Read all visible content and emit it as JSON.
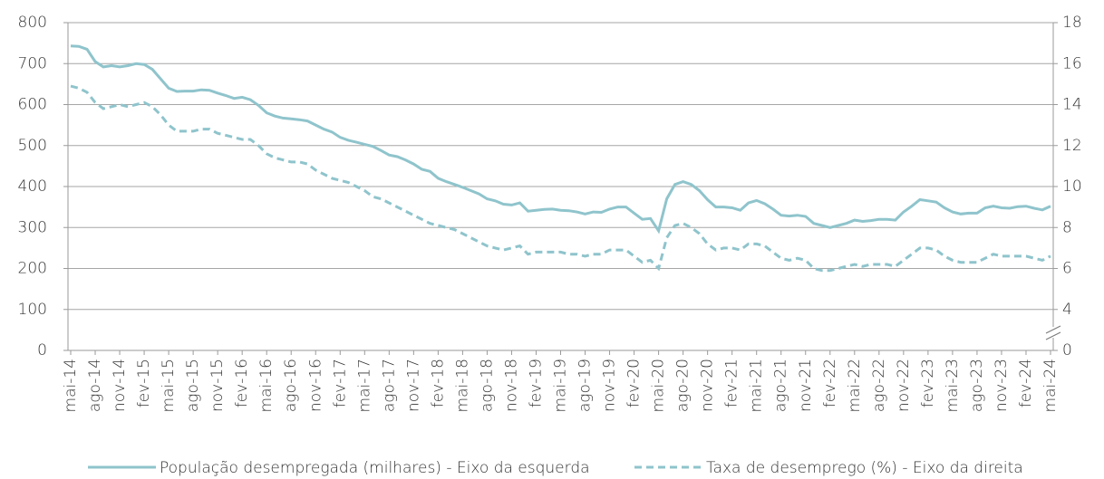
{
  "chart_data": {
    "type": "line",
    "categories": [
      "mai-14",
      null,
      null,
      "ago-14",
      null,
      null,
      "nov-14",
      null,
      null,
      "fev-15",
      null,
      null,
      "mai-15",
      null,
      null,
      "ago-15",
      null,
      null,
      "nov-15",
      null,
      null,
      "fev-16",
      null,
      null,
      "mai-16",
      null,
      null,
      "ago-16",
      null,
      null,
      "nov-16",
      null,
      null,
      "fev-17",
      null,
      null,
      "mai-17",
      null,
      null,
      "ago-17",
      null,
      null,
      "nov-17",
      null,
      null,
      "fev-18",
      null,
      null,
      "mai-18",
      null,
      null,
      "ago-18",
      null,
      null,
      "nov-18",
      null,
      null,
      "fev-19",
      null,
      null,
      "mai-19",
      null,
      null,
      "ago-19",
      null,
      null,
      "nov-19",
      null,
      null,
      "fev-20",
      null,
      null,
      "mai-20",
      null,
      null,
      "ago-20",
      null,
      null,
      "nov-20",
      null,
      null,
      "fev-21",
      null,
      null,
      "mai-21",
      null,
      null,
      "ago-21",
      null,
      null,
      "nov-21",
      null,
      null,
      "fev-22",
      null,
      null,
      "mai-22",
      null,
      null,
      "ago-22",
      null,
      null,
      "nov-22",
      null,
      null,
      "fev-23",
      null,
      null,
      "mai-23",
      null,
      null,
      "ago-23",
      null,
      null,
      "nov-23",
      null,
      null,
      "fev-24",
      null,
      null,
      "mai-24"
    ],
    "series": [
      {
        "name": "População desempregada (milhares) - Eixo da esquerda",
        "color": "#8fc4cc",
        "style": "solid",
        "axis": "y",
        "values": [
          743,
          742,
          735,
          705,
          692,
          695,
          692,
          695,
          700,
          698,
          686,
          663,
          640,
          632,
          633,
          633,
          636,
          635,
          628,
          622,
          615,
          618,
          612,
          598,
          580,
          572,
          567,
          565,
          563,
          560,
          550,
          540,
          533,
          520,
          513,
          508,
          503,
          498,
          488,
          477,
          473,
          465,
          455,
          442,
          437,
          420,
          412,
          405,
          398,
          390,
          382,
          370,
          365,
          357,
          355,
          360,
          340,
          342,
          344,
          345,
          342,
          341,
          338,
          333,
          338,
          337,
          345,
          350,
          350,
          335,
          320,
          322,
          292,
          370,
          405,
          412,
          405,
          390,
          368,
          350,
          350,
          348,
          342,
          360,
          366,
          358,
          345,
          330,
          328,
          330,
          327,
          310,
          305,
          300,
          305,
          310,
          318,
          315,
          317,
          320,
          320,
          318,
          338,
          352,
          368,
          365,
          362,
          348,
          338,
          333,
          335,
          335,
          348,
          352,
          348,
          347,
          351,
          352,
          347,
          343,
          352
        ]
      },
      {
        "name": "Taxa de desemprego (%) - Eixo da direita",
        "color": "#8fc4cc",
        "style": "dashed",
        "axis": "y2",
        "values": [
          14.9,
          14.8,
          14.6,
          14.1,
          13.8,
          13.9,
          14.0,
          13.9,
          14.0,
          14.1,
          13.9,
          13.5,
          13.0,
          12.7,
          12.7,
          12.7,
          12.8,
          12.8,
          12.6,
          12.5,
          12.4,
          12.3,
          12.3,
          12.0,
          11.6,
          11.4,
          11.3,
          11.2,
          11.2,
          11.1,
          10.8,
          10.6,
          10.4,
          10.3,
          10.2,
          10.0,
          9.8,
          9.5,
          9.4,
          9.2,
          9.0,
          8.8,
          8.6,
          8.4,
          8.2,
          8.1,
          8.0,
          7.9,
          7.7,
          7.5,
          7.3,
          7.1,
          7.0,
          6.9,
          7.0,
          7.1,
          6.7,
          6.8,
          6.8,
          6.8,
          6.8,
          6.7,
          6.7,
          6.6,
          6.7,
          6.7,
          6.9,
          6.9,
          6.9,
          6.6,
          6.3,
          6.4,
          6.0,
          7.5,
          8.1,
          8.2,
          8.0,
          7.7,
          7.2,
          6.9,
          7.0,
          7.0,
          6.9,
          7.2,
          7.2,
          7.1,
          6.8,
          6.5,
          6.4,
          6.5,
          6.4,
          6.0,
          5.9,
          5.9,
          6.0,
          6.1,
          6.2,
          6.1,
          6.2,
          6.2,
          6.2,
          6.1,
          6.4,
          6.7,
          7.0,
          7.0,
          6.9,
          6.6,
          6.4,
          6.3,
          6.3,
          6.3,
          6.5,
          6.7,
          6.6,
          6.6,
          6.6,
          6.6,
          6.5,
          6.4,
          6.6
        ]
      }
    ],
    "ylim": [
      0,
      800
    ],
    "yticks": [
      0,
      100,
      200,
      300,
      400,
      500,
      600,
      700,
      800
    ],
    "y2lim": [
      2,
      18
    ],
    "y2ticks": [
      0,
      4,
      6,
      8,
      10,
      12,
      14,
      16,
      18
    ],
    "y2_axis_break": true,
    "grid": true,
    "legend": "bottom"
  }
}
